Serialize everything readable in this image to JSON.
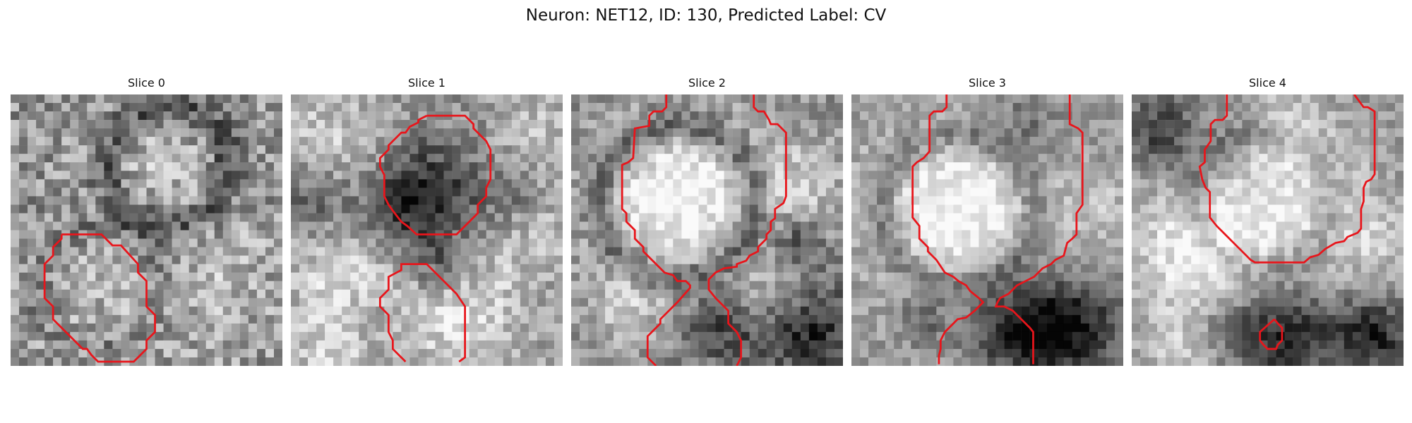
{
  "figure": {
    "title": "Neuron: NET12, ID: 130, Predicted Label: CV",
    "contour_color": "#e8151b",
    "colormap": "grayscale",
    "panels": [
      {
        "title": "Slice 0"
      },
      {
        "title": "Slice 1"
      },
      {
        "title": "Slice 2"
      },
      {
        "title": "Slice 3"
      },
      {
        "title": "Slice 4"
      }
    ]
  }
}
